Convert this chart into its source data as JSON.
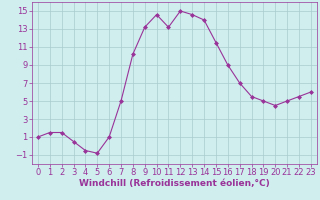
{
  "x": [
    0,
    1,
    2,
    3,
    4,
    5,
    6,
    7,
    8,
    9,
    10,
    11,
    12,
    13,
    14,
    15,
    16,
    17,
    18,
    19,
    20,
    21,
    22,
    23
  ],
  "y": [
    1.0,
    1.5,
    1.5,
    0.5,
    -0.5,
    -0.8,
    1.0,
    5.0,
    10.2,
    13.2,
    14.6,
    13.2,
    15.0,
    14.6,
    14.0,
    11.5,
    9.0,
    7.0,
    5.5,
    5.0,
    4.5,
    5.0,
    5.5,
    6.0
  ],
  "line_color": "#993399",
  "marker": "D",
  "marker_size": 2,
  "bg_color": "#d0eeee",
  "grid_color": "#aacccc",
  "xlabel": "Windchill (Refroidissement éolien,°C)",
  "xlabel_color": "#993399",
  "xlabel_fontsize": 6.5,
  "tick_color": "#993399",
  "tick_fontsize": 6,
  "ylim": [
    -2,
    16
  ],
  "xlim": [
    -0.5,
    23.5
  ],
  "yticks": [
    -1,
    1,
    3,
    5,
    7,
    9,
    11,
    13,
    15
  ],
  "xticks": [
    0,
    1,
    2,
    3,
    4,
    5,
    6,
    7,
    8,
    9,
    10,
    11,
    12,
    13,
    14,
    15,
    16,
    17,
    18,
    19,
    20,
    21,
    22,
    23
  ]
}
